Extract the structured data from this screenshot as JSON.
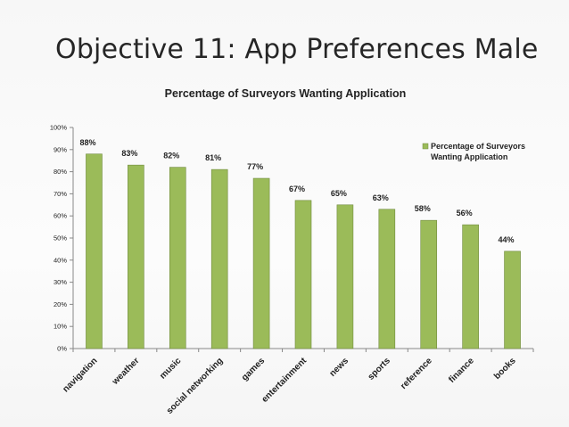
{
  "slide": {
    "title": "Objective 11: App Preferences Male"
  },
  "colors": {
    "bar": "#9bbb59",
    "bar_stroke": "#6f8a3c",
    "axis": "#888888"
  },
  "chart_data": {
    "type": "bar",
    "title": "Percentage of Surveyors Wanting Application",
    "xlabel": "",
    "ylabel": "",
    "ylim": [
      0,
      100
    ],
    "yticks": [
      "0%",
      "10%",
      "20%",
      "30%",
      "40%",
      "50%",
      "60%",
      "70%",
      "80%",
      "90%",
      "100%"
    ],
    "categories": [
      "navigation",
      "weather",
      "music",
      "social networking",
      "games",
      "entertainment",
      "news",
      "sports",
      "reference",
      "finance",
      "books"
    ],
    "values": [
      88,
      83,
      82,
      81,
      77,
      67,
      65,
      63,
      58,
      56,
      44
    ],
    "data_labels": [
      "88%",
      "83%",
      "82%",
      "81%",
      "77%",
      "67%",
      "65%",
      "63%",
      "58%",
      "56%",
      "44%"
    ],
    "legend": {
      "lines": [
        "Percentage of Surveyors",
        "Wanting Application"
      ],
      "position": "top-right"
    },
    "grid": false
  }
}
